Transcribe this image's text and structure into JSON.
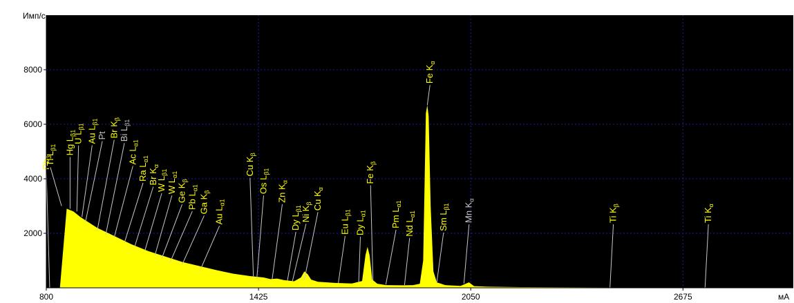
{
  "chart_data": {
    "type": "area",
    "ylabel": "Имп/с",
    "xlabel": "мА",
    "xlim": [
      800,
      3000
    ],
    "ylim": [
      0,
      10000
    ],
    "x_ticks": [
      800,
      1425,
      2050,
      2675
    ],
    "x_tick_labels": [
      "800",
      "1425",
      "2050",
      "2675"
    ],
    "y_ticks": [
      2000,
      4000,
      6000,
      8000
    ],
    "y_tick_labels": [
      "2000",
      "4000",
      "6000",
      "8000"
    ],
    "grid": true,
    "colors": {
      "plot_bg": "#000000",
      "fill": "#ffff00",
      "grid": "#1c1ca8",
      "label": "#ffff00",
      "label_dim": "#c8c8c8",
      "leader": "#c8c8c8"
    },
    "spectrum": {
      "x": [
        800,
        840,
        860,
        880,
        900,
        925,
        950,
        1000,
        1050,
        1100,
        1150,
        1200,
        1250,
        1300,
        1350,
        1400,
        1440,
        1460,
        1480,
        1500,
        1530,
        1550,
        1560,
        1570,
        1580,
        1600,
        1650,
        1700,
        1730,
        1740,
        1746,
        1752,
        1760,
        1775,
        1790,
        1800,
        1850,
        1880,
        1900,
        1910,
        1918,
        1922,
        1926,
        1932,
        1940,
        1950,
        1975,
        2000,
        2020,
        2035,
        2045,
        2060,
        2100,
        2200,
        2400,
        2600,
        2800,
        3000
      ],
      "y": [
        0,
        0,
        2900,
        2800,
        2600,
        2400,
        2200,
        1900,
        1600,
        1350,
        1150,
        950,
        800,
        650,
        520,
        430,
        380,
        320,
        340,
        280,
        240,
        380,
        600,
        500,
        300,
        220,
        180,
        160,
        250,
        1200,
        1500,
        1200,
        300,
        150,
        120,
        100,
        90,
        100,
        150,
        1000,
        6400,
        6700,
        6300,
        3000,
        600,
        200,
        100,
        80,
        70,
        150,
        200,
        60,
        40,
        25,
        15,
        10,
        5,
        0
      ]
    },
    "peak_labels": [
      {
        "text": "Pb",
        "sub": "3",
        "x": 800,
        "y": 4330,
        "tip_x": 810,
        "tip_y": 0,
        "dim": false
      },
      {
        "text": "Tl L",
        "sub": "β1",
        "x": 812,
        "y": 4470,
        "tip_x": 845,
        "tip_y": 3000,
        "dim": false
      },
      {
        "text": "Hg L",
        "sub": "β1",
        "x": 870,
        "y": 4850,
        "tip_x": 870,
        "tip_y": 2900,
        "dim": false
      },
      {
        "text": "U L",
        "sub": "β1",
        "x": 895,
        "y": 5270,
        "tip_x": 890,
        "tip_y": 2800,
        "dim": false
      },
      {
        "text": "Au L",
        "sub": "β1",
        "x": 935,
        "y": 5280,
        "tip_x": 905,
        "tip_y": 2600,
        "dim": false
      },
      {
        "text": "Pt",
        "sub": "",
        "x": 965,
        "y": 5430,
        "tip_x": 915,
        "tip_y": 2400,
        "dim": true
      },
      {
        "text": "Br K",
        "sub": "β",
        "x": 1000,
        "y": 5480,
        "tip_x": 950,
        "tip_y": 2100,
        "dim": false
      },
      {
        "text": "Bi L",
        "sub": "β1",
        "x": 1030,
        "y": 5360,
        "tip_x": 975,
        "tip_y": 1950,
        "dim": true
      },
      {
        "text": "Ac L",
        "sub": "α1",
        "x": 1055,
        "y": 4520,
        "tip_x": 1000,
        "tip_y": 1850,
        "dim": false
      },
      {
        "text": "Ra L",
        "sub": "α1",
        "x": 1085,
        "y": 3900,
        "tip_x": 1030,
        "tip_y": 1650,
        "dim": false
      },
      {
        "text": "Br K",
        "sub": "α",
        "x": 1115,
        "y": 3760,
        "tip_x": 1060,
        "tip_y": 1500,
        "dim": false
      },
      {
        "text": "W L",
        "sub": "β1",
        "x": 1140,
        "y": 3520,
        "tip_x": 1090,
        "tip_y": 1350,
        "dim": false
      },
      {
        "text": "W L",
        "sub": "α1",
        "x": 1170,
        "y": 3440,
        "tip_x": 1120,
        "tip_y": 1200,
        "dim": false
      },
      {
        "text": "Ge K",
        "sub": "β",
        "x": 1200,
        "y": 3110,
        "tip_x": 1140,
        "tip_y": 1080,
        "dim": false
      },
      {
        "text": "Pb L",
        "sub": "α1",
        "x": 1230,
        "y": 2860,
        "tip_x": 1165,
        "tip_y": 950,
        "dim": false
      },
      {
        "text": "Ga K",
        "sub": "β",
        "x": 1265,
        "y": 2700,
        "tip_x": 1200,
        "tip_y": 850,
        "dim": false
      },
      {
        "text": "Au L",
        "sub": "α1",
        "x": 1310,
        "y": 2320,
        "tip_x": 1255,
        "tip_y": 700,
        "dim": false
      },
      {
        "text": "Cu K",
        "sub": "β",
        "x": 1400,
        "y": 4090,
        "tip_x": 1410,
        "tip_y": 380,
        "dim": false
      },
      {
        "text": "Os L",
        "sub": "β1",
        "x": 1440,
        "y": 3440,
        "tip_x": 1420,
        "tip_y": 330,
        "dim": false
      },
      {
        "text": "Zn K",
        "sub": "α",
        "x": 1495,
        "y": 3120,
        "tip_x": 1465,
        "tip_y": 300,
        "dim": false
      },
      {
        "text": "Dy L",
        "sub": "β1",
        "x": 1535,
        "y": 2100,
        "tip_x": 1510,
        "tip_y": 250,
        "dim": false
      },
      {
        "text": "Ni K",
        "sub": "β",
        "x": 1565,
        "y": 2400,
        "tip_x": 1525,
        "tip_y": 250,
        "dim": false
      },
      {
        "text": "Cu K",
        "sub": "α",
        "x": 1600,
        "y": 2830,
        "tip_x": 1560,
        "tip_y": 300,
        "dim": false
      },
      {
        "text": "Eu L",
        "sub": "β1",
        "x": 1680,
        "y": 1950,
        "tip_x": 1660,
        "tip_y": 170,
        "dim": false
      },
      {
        "text": "Dy L",
        "sub": "α1",
        "x": 1725,
        "y": 1920,
        "tip_x": 1720,
        "tip_y": 180,
        "dim": false
      },
      {
        "text": "Fe K",
        "sub": "β",
        "x": 1755,
        "y": 3810,
        "tip_x": 1762,
        "tip_y": 250,
        "dim": false
      },
      {
        "text": "Pm L",
        "sub": "α1",
        "x": 1830,
        "y": 2180,
        "tip_x": 1800,
        "tip_y": 120,
        "dim": false
      },
      {
        "text": "Nd L",
        "sub": "α1",
        "x": 1870,
        "y": 1880,
        "tip_x": 1855,
        "tip_y": 100,
        "dim": false
      },
      {
        "text": "Fe K",
        "sub": "α",
        "x": 1930,
        "y": 7490,
        "tip_x": 1922,
        "tip_y": 6700,
        "dim": false
      },
      {
        "text": "Sm L",
        "sub": "β1",
        "x": 1970,
        "y": 2080,
        "tip_x": 1950,
        "tip_y": 200,
        "dim": false
      },
      {
        "text": "Mn K",
        "sub": "α",
        "x": 2045,
        "y": 2380,
        "tip_x": 2030,
        "tip_y": 160,
        "dim": true
      },
      {
        "text": "Ti K",
        "sub": "β",
        "x": 2470,
        "y": 2380,
        "tip_x": 2460,
        "tip_y": 0,
        "dim": false
      },
      {
        "text": "Ti K",
        "sub": "α",
        "x": 2750,
        "y": 2380,
        "tip_x": 2740,
        "tip_y": 0,
        "dim": false
      }
    ]
  }
}
